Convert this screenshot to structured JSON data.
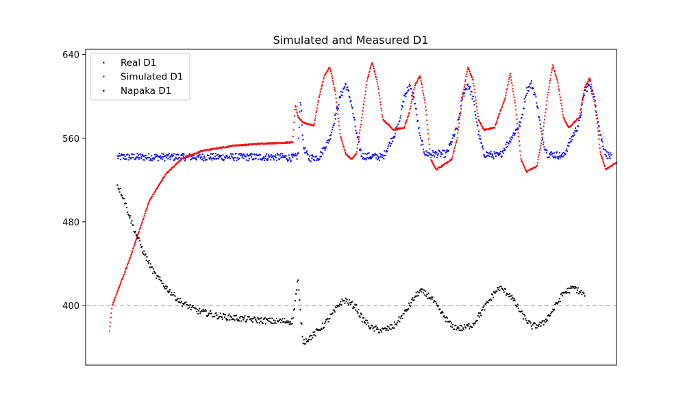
{
  "chart_data": {
    "type": "scatter",
    "title": "Simulated and Measured D1",
    "xlabel": "",
    "ylabel": "",
    "xlim": [
      0,
      100
    ],
    "ylim": [
      343,
      645
    ],
    "y_ticks": [
      "640",
      "560",
      "480",
      "400"
    ],
    "x_ticks": [],
    "grid": false,
    "legend_position": "upper-left",
    "reference_line": {
      "y": 400,
      "style": "dashed",
      "color": "#bbbbbb"
    },
    "series": [
      {
        "name": "Real D1",
        "color": "#0000ff",
        "description_points": [
          [
            6,
            542
          ],
          [
            10,
            542
          ],
          [
            20,
            542
          ],
          [
            30,
            542
          ],
          [
            37,
            542
          ],
          [
            39,
            541
          ],
          [
            40,
            543
          ],
          [
            40.5,
            600
          ],
          [
            41,
            552
          ],
          [
            42,
            541
          ],
          [
            44,
            542
          ],
          [
            46,
            560
          ],
          [
            48,
            600
          ],
          [
            49,
            612
          ],
          [
            50,
            595
          ],
          [
            51,
            565
          ],
          [
            52,
            543
          ],
          [
            56,
            542
          ],
          [
            59,
            572
          ],
          [
            60,
            600
          ],
          [
            61,
            610
          ],
          [
            62,
            595
          ],
          [
            63,
            560
          ],
          [
            64,
            545
          ],
          [
            68,
            545
          ],
          [
            70,
            570
          ],
          [
            71,
            600
          ],
          [
            72,
            612
          ],
          [
            73,
            598
          ],
          [
            74,
            565
          ],
          [
            75,
            545
          ],
          [
            78,
            543
          ],
          [
            82,
            575
          ],
          [
            83,
            605
          ],
          [
            84,
            612
          ],
          [
            85,
            595
          ],
          [
            86,
            560
          ],
          [
            87,
            545
          ],
          [
            90,
            543
          ],
          [
            93,
            575
          ],
          [
            94,
            605
          ],
          [
            95,
            612
          ],
          [
            96,
            595
          ],
          [
            97,
            562
          ],
          [
            98,
            545
          ],
          [
            99,
            542
          ]
        ]
      },
      {
        "name": "Simulated D1",
        "color": "#ff0000",
        "description_points": [
          [
            4.5,
            375
          ],
          [
            5,
            400
          ],
          [
            8,
            440
          ],
          [
            10,
            470
          ],
          [
            12,
            500
          ],
          [
            15,
            525
          ],
          [
            18,
            540
          ],
          [
            22,
            548
          ],
          [
            28,
            553
          ],
          [
            34,
            555
          ],
          [
            39,
            556
          ],
          [
            39.5,
            592
          ],
          [
            40,
            580
          ],
          [
            41,
            575
          ],
          [
            43,
            572
          ],
          [
            44,
            600
          ],
          [
            45,
            620
          ],
          [
            46,
            628
          ],
          [
            47,
            605
          ],
          [
            48,
            562
          ],
          [
            49,
            545
          ],
          [
            50,
            540
          ],
          [
            51,
            545
          ],
          [
            52,
            578
          ],
          [
            53,
            615
          ],
          [
            54,
            633
          ],
          [
            55,
            612
          ],
          [
            56,
            578
          ],
          [
            58,
            568
          ],
          [
            60,
            570
          ],
          [
            61,
            585
          ],
          [
            62,
            610
          ],
          [
            63,
            620
          ],
          [
            64,
            592
          ],
          [
            65,
            540
          ],
          [
            66,
            530
          ],
          [
            67,
            533
          ],
          [
            69,
            540
          ],
          [
            70,
            560
          ],
          [
            71,
            600
          ],
          [
            72,
            628
          ],
          [
            73,
            615
          ],
          [
            74,
            578
          ],
          [
            75,
            568
          ],
          [
            77,
            570
          ],
          [
            79,
            598
          ],
          [
            80,
            622
          ],
          [
            81,
            590
          ],
          [
            82,
            540
          ],
          [
            83,
            528
          ],
          [
            85,
            533
          ],
          [
            86,
            560
          ],
          [
            87,
            600
          ],
          [
            88,
            630
          ],
          [
            89,
            612
          ],
          [
            90,
            580
          ],
          [
            91,
            570
          ],
          [
            93,
            580
          ],
          [
            94,
            608
          ],
          [
            95,
            618
          ],
          [
            96,
            590
          ],
          [
            97,
            545
          ],
          [
            98,
            530
          ],
          [
            100,
            537
          ]
        ]
      },
      {
        "name": "Napaka D1",
        "color": "#000000",
        "description_points": [
          [
            6,
            515
          ],
          [
            7,
            505
          ],
          [
            9,
            475
          ],
          [
            11,
            450
          ],
          [
            13,
            430
          ],
          [
            15,
            418
          ],
          [
            18,
            403
          ],
          [
            21,
            395
          ],
          [
            25,
            390
          ],
          [
            30,
            387
          ],
          [
            35,
            385
          ],
          [
            39,
            385
          ],
          [
            39.5,
            405
          ],
          [
            40,
            425
          ],
          [
            40.5,
            390
          ],
          [
            41,
            365
          ],
          [
            43,
            372
          ],
          [
            45,
            382
          ],
          [
            47,
            395
          ],
          [
            48,
            403
          ],
          [
            49,
            405
          ],
          [
            51,
            398
          ],
          [
            52,
            388
          ],
          [
            54,
            378
          ],
          [
            56,
            376
          ],
          [
            58,
            380
          ],
          [
            60,
            392
          ],
          [
            62,
            408
          ],
          [
            63,
            414
          ],
          [
            65,
            408
          ],
          [
            67,
            393
          ],
          [
            69,
            380
          ],
          [
            71,
            378
          ],
          [
            73,
            382
          ],
          [
            75,
            397
          ],
          [
            77,
            412
          ],
          [
            78,
            417
          ],
          [
            80,
            410
          ],
          [
            82,
            393
          ],
          [
            84,
            380
          ],
          [
            86,
            382
          ],
          [
            88,
            395
          ],
          [
            90,
            412
          ],
          [
            92,
            417
          ],
          [
            94,
            410
          ]
        ]
      }
    ]
  }
}
